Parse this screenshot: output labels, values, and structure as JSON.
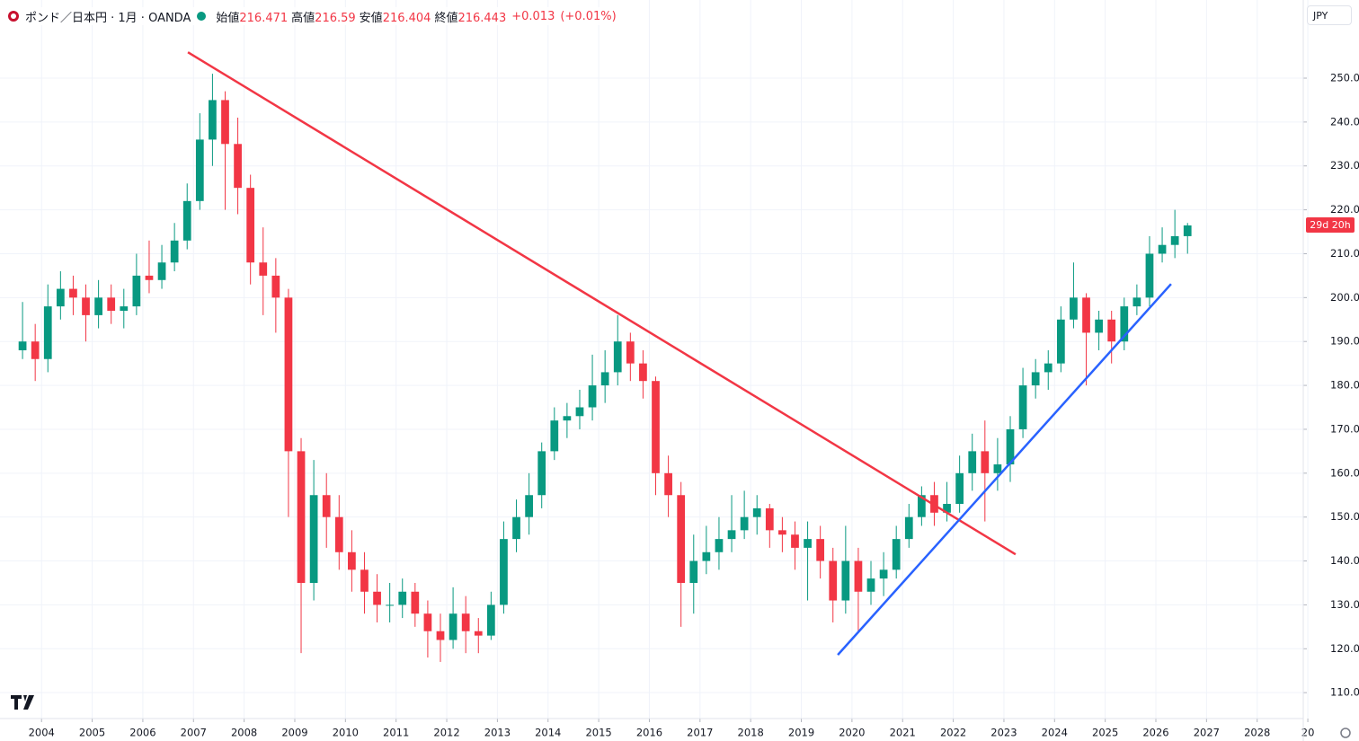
{
  "header": {
    "symbol": "ポンド／日本円 · 1月 · OANDA",
    "ohlc": [
      {
        "label": "始値",
        "value": 216.471
      },
      {
        "label": "高値",
        "value": 216.59
      },
      {
        "label": "安値",
        "value": 216.404
      },
      {
        "label": "終値",
        "value": 216.443
      }
    ],
    "change": "+0.013",
    "change_pct": "(+0.01%)",
    "currency": "JPY",
    "countdown": "29d 20h"
  },
  "chart_data": {
    "type": "candlestick",
    "up_color": "#089981",
    "down_color": "#f23645",
    "grid": true,
    "xlim": [
      2003.18,
      2028.91
    ],
    "ylim": [
      104.1,
      267.8
    ],
    "xticks": [
      2004,
      2005,
      2006,
      2007,
      2008,
      2009,
      2010,
      2011,
      2012,
      2013,
      2014,
      2015,
      2016,
      2017,
      2018,
      2019,
      2020,
      2021,
      2022,
      2023,
      2024,
      2025,
      2026,
      2027,
      2028,
      {
        "value": 2029,
        "label": "20"
      }
    ],
    "yticks": [
      {
        "value": 110,
        "label": "110.000"
      },
      {
        "value": 120,
        "label": "120.000"
      },
      {
        "value": 130,
        "label": "130.000"
      },
      {
        "value": 140,
        "label": "140.000"
      },
      {
        "value": 150,
        "label": "150.000"
      },
      {
        "value": 160,
        "label": "160.000"
      },
      {
        "value": 170,
        "label": "170.000"
      },
      {
        "value": 180,
        "label": "180.000"
      },
      {
        "value": 190,
        "label": "190.000"
      },
      {
        "value": 200,
        "label": "200.000"
      },
      {
        "value": 210,
        "label": "210.000"
      },
      {
        "value": 220,
        "label": "220.000"
      },
      {
        "value": 230,
        "label": "230.000"
      },
      {
        "value": 240,
        "label": "240.000"
      },
      {
        "value": 250,
        "label": "250.000"
      }
    ],
    "x": [
      2003.625,
      2003.875,
      2004.125,
      2004.375,
      2004.625,
      2004.875,
      2005.125,
      2005.375,
      2005.625,
      2005.875,
      2006.125,
      2006.375,
      2006.625,
      2006.875,
      2007.125,
      2007.375,
      2007.625,
      2007.875,
      2008.125,
      2008.375,
      2008.625,
      2008.875,
      2009.125,
      2009.375,
      2009.625,
      2009.875,
      2010.125,
      2010.375,
      2010.625,
      2010.875,
      2011.125,
      2011.375,
      2011.625,
      2011.875,
      2012.125,
      2012.375,
      2012.625,
      2012.875,
      2013.125,
      2013.375,
      2013.625,
      2013.875,
      2014.125,
      2014.375,
      2014.625,
      2014.875,
      2015.125,
      2015.375,
      2015.625,
      2015.875,
      2016.125,
      2016.375,
      2016.625,
      2016.875,
      2017.125,
      2017.375,
      2017.625,
      2017.875,
      2018.125,
      2018.375,
      2018.625,
      2018.875,
      2019.125,
      2019.375,
      2019.625,
      2019.875,
      2020.125,
      2020.375,
      2020.625,
      2020.875,
      2021.125,
      2021.375,
      2021.625,
      2021.875,
      2022.125,
      2022.375,
      2022.625,
      2022.875,
      2023.125,
      2023.375,
      2023.625,
      2023.875,
      2024.125,
      2024.375,
      2024.625,
      2024.875,
      2025.125,
      2025.375,
      2025.625,
      2025.875,
      2026.125,
      2026.375,
      2026.625
    ],
    "open": [
      188,
      190,
      186,
      198,
      202,
      200,
      196,
      200,
      197,
      198,
      205,
      204,
      208,
      213,
      222,
      236,
      245,
      235,
      225,
      208,
      205,
      200,
      165,
      135,
      155,
      150,
      142,
      138,
      133,
      130,
      130,
      133,
      128,
      124,
      122,
      128,
      124,
      123,
      130,
      145,
      150,
      155,
      165,
      172,
      173,
      175,
      180,
      183,
      190,
      185,
      181,
      160,
      155,
      135,
      140,
      142,
      145,
      147,
      150,
      152,
      147,
      146,
      143,
      145,
      140,
      131,
      140,
      133,
      136,
      138,
      145,
      150,
      155,
      151,
      153,
      160,
      165,
      160,
      162,
      170,
      180,
      183,
      185,
      195,
      200,
      192,
      195,
      190,
      198,
      200,
      210,
      212,
      214
    ],
    "high": [
      199,
      194,
      203,
      206,
      205,
      203,
      204,
      203,
      202,
      210,
      213,
      212,
      217,
      226,
      242,
      251,
      247,
      241,
      228,
      216,
      209,
      202,
      168,
      163,
      160,
      155,
      147,
      142,
      137,
      135,
      136,
      135,
      131,
      128,
      134,
      132,
      127,
      133,
      149,
      154,
      160,
      167,
      175,
      176,
      179,
      187,
      188,
      196,
      192,
      188,
      182,
      164,
      158,
      146,
      148,
      150,
      155,
      156,
      155,
      153,
      150,
      149,
      149,
      148,
      143,
      148,
      143,
      140,
      142,
      148,
      153,
      157,
      158,
      158,
      164,
      169,
      172,
      168,
      173,
      184,
      186,
      188,
      198,
      208,
      201,
      197,
      197,
      200,
      203,
      214,
      216,
      220,
      217
    ],
    "low": [
      186,
      181,
      183,
      195,
      196,
      190,
      193,
      194,
      193,
      196,
      201,
      202,
      206,
      211,
      220,
      230,
      220,
      219,
      203,
      196,
      192,
      150,
      119,
      131,
      143,
      138,
      133,
      128,
      126,
      126,
      127,
      125,
      118,
      117,
      120,
      119,
      119,
      122,
      128,
      142,
      146,
      152,
      163,
      168,
      170,
      172,
      176,
      180,
      181,
      177,
      155,
      150,
      125,
      128,
      137,
      138,
      142,
      145,
      146,
      143,
      142,
      138,
      131,
      136,
      126,
      128,
      124,
      130,
      132,
      136,
      143,
      148,
      148,
      149,
      151,
      156,
      149,
      156,
      158,
      168,
      177,
      179,
      183,
      193,
      180,
      188,
      185,
      188,
      196,
      198,
      208,
      209,
      210
    ],
    "close": [
      190,
      186,
      198,
      202,
      200,
      196,
      200,
      197,
      198,
      205,
      204,
      208,
      213,
      222,
      236,
      245,
      235,
      225,
      208,
      205,
      200,
      165,
      135,
      155,
      150,
      142,
      138,
      133,
      130,
      130,
      133,
      128,
      124,
      122,
      128,
      124,
      123,
      130,
      145,
      150,
      155,
      165,
      172,
      173,
      175,
      180,
      183,
      190,
      185,
      181,
      160,
      155,
      135,
      140,
      142,
      145,
      147,
      150,
      152,
      147,
      146,
      143,
      145,
      140,
      131,
      140,
      133,
      136,
      138,
      145,
      150,
      155,
      151,
      153,
      160,
      165,
      160,
      162,
      170,
      180,
      183,
      185,
      195,
      200,
      192,
      195,
      190,
      198,
      200,
      210,
      212,
      214,
      216.443
    ],
    "lines": [
      {
        "color": "#f23645",
        "x": [
          2006.89,
          2023.23
        ],
        "y": [
          255.9,
          141.5
        ]
      },
      {
        "color": "#2962ff",
        "x": [
          2019.72,
          2026.3
        ],
        "y": [
          118.6,
          203.1
        ]
      }
    ]
  }
}
